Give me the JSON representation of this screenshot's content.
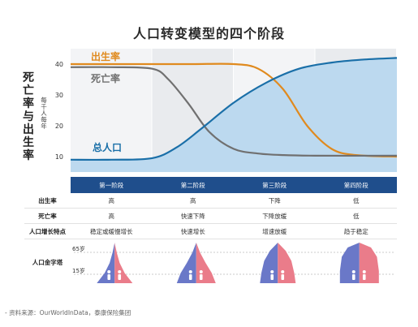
{
  "title": "人口转变模型的四个阶段",
  "source": "- 资料来源：OurWorldInData，泰康保险集团",
  "colors": {
    "birth": "#e08a1e",
    "death": "#707070",
    "population": "#1a6fa8",
    "population_fill": "#bcd9ef",
    "header": "#1f4e8c",
    "pyramid_blue": "#6a78c8",
    "pyramid_red": "#ea7c8a"
  },
  "chart_data": {
    "type": "line",
    "ylabel": "死亡率与出生率",
    "yunit": "每千人每年",
    "yticks": [
      10,
      20,
      30,
      40
    ],
    "ylim": [
      5,
      45
    ],
    "grid": false,
    "stage_count": 4,
    "series": [
      {
        "name": "出生率",
        "x": [
          0,
          0.5,
          1.0,
          1.5,
          2.0,
          2.3,
          2.6,
          2.9,
          3.2,
          3.5,
          4.0
        ],
        "values": [
          40,
          40,
          40,
          40,
          40,
          38.5,
          32,
          20,
          12.5,
          10.5,
          10
        ]
      },
      {
        "name": "死亡率",
        "x": [
          0,
          0.5,
          1.0,
          1.2,
          1.45,
          1.7,
          2.0,
          2.3,
          2.6,
          3.0,
          4.0
        ],
        "values": [
          39,
          39,
          38.5,
          35,
          27,
          18,
          12.5,
          11,
          10.5,
          10.3,
          10.3
        ]
      },
      {
        "name": "总人口",
        "x": [
          0,
          0.5,
          1.0,
          1.3,
          1.6,
          2.0,
          2.4,
          2.8,
          3.2,
          3.6,
          4.0
        ],
        "values": [
          9,
          9,
          9.5,
          13,
          19,
          27.5,
          34,
          38.5,
          40.5,
          41.5,
          42
        ]
      }
    ]
  },
  "table": {
    "headers": [
      "第一阶段",
      "第二阶段",
      "第三阶段",
      "第四阶段"
    ],
    "rows": [
      {
        "label": "出生率",
        "cells": [
          "高",
          "高",
          "下降",
          "低"
        ]
      },
      {
        "label": "死亡率",
        "cells": [
          "高",
          "快速下降",
          "下降放缓",
          "低"
        ]
      },
      {
        "label": "人口增长特点",
        "cells": [
          "稳定或缓慢增长",
          "快速增长",
          "增速放缓",
          "趋于稳定"
        ]
      }
    ],
    "pyramid_label": "人口金字塔",
    "age_labels": [
      "65岁",
      "15岁"
    ]
  }
}
